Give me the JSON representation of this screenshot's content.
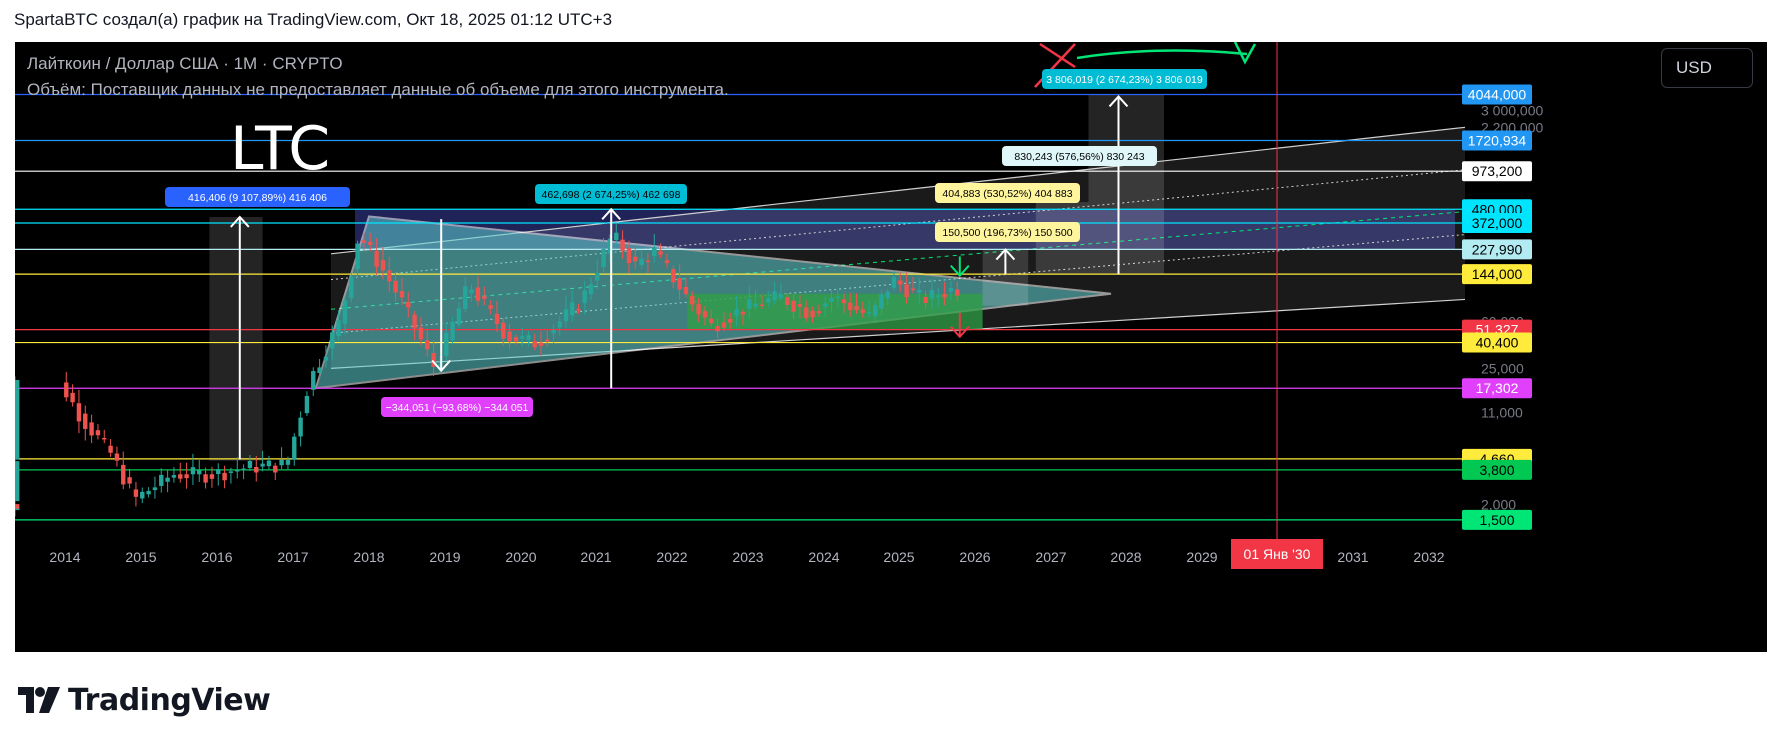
{
  "header": {
    "text": "SpartaBTC создал(а) график на TradingView.com, Окт 18, 2025 01:12 UTC+3"
  },
  "legend": {
    "symbol": "Лайткоин / Доллар США · 1M · CRYPTO",
    "volume": "Объём: Поставщик данных не предоставляет данные об объеме для этого инструмента."
  },
  "big_label": "LTC",
  "currency_button": "USD",
  "footer": {
    "brand": "TradingView"
  },
  "colors": {
    "background": "#000000",
    "candle_up": "#26a69a",
    "candle_down": "#ef5350",
    "triangle_fill": "#5fd3d3",
    "channel_fill": "#3b3f9e",
    "range_box": "#2ea043"
  },
  "chart_data": {
    "type": "candlestick",
    "title": "Лайткоин / Доллар США · 1M · CRYPTO",
    "x_axis": {
      "ticks": [
        "2014",
        "2015",
        "2016",
        "2017",
        "2018",
        "2019",
        "2020",
        "2021",
        "2022",
        "2023",
        "2024",
        "2025",
        "2026",
        "2027",
        "2028",
        "2029",
        "2031",
        "2032"
      ],
      "highlight": "01 Янв '30"
    },
    "y_axis": {
      "scale": "log",
      "faded_ticks": [
        "3 000,000",
        "2 200,000",
        "60,000",
        "25,000",
        "11,000",
        "2,000"
      ],
      "badges": [
        {
          "label": "4044,000",
          "price": 4044,
          "bg": "#2196f3",
          "fg": "#ffffff"
        },
        {
          "label": "1720,934",
          "price": 1720.934,
          "bg": "#2196f3",
          "fg": "#ffffff"
        },
        {
          "label": "973,200",
          "price": 973.2,
          "bg": "#ffffff",
          "fg": "#000000"
        },
        {
          "label": "480,000",
          "price": 480,
          "bg": "#00e5ff",
          "fg": "#000000"
        },
        {
          "label": "372,000",
          "price": 372,
          "bg": "#00e5ff",
          "fg": "#000000"
        },
        {
          "label": "227,990",
          "price": 227.99,
          "bg": "#b2ebf2",
          "fg": "#000000"
        },
        {
          "label": "144,000",
          "price": 144,
          "bg": "#ffeb3b",
          "fg": "#000000"
        },
        {
          "label": "51,327",
          "price": 51.327,
          "bg": "#f23645",
          "fg": "#ffffff"
        },
        {
          "label": "40,400",
          "price": 40.4,
          "bg": "#ffeb3b",
          "fg": "#000000"
        },
        {
          "label": "17,302",
          "price": 17.302,
          "bg": "#e040fb",
          "fg": "#ffffff"
        },
        {
          "label": "4,660",
          "price": 4.66,
          "bg": "#ffeb3b",
          "fg": "#000000"
        },
        {
          "label": "3,800",
          "price": 3.8,
          "bg": "#00c853",
          "fg": "#000000"
        },
        {
          "label": "1,500",
          "price": 1.5,
          "bg": "#00e676",
          "fg": "#000000"
        }
      ]
    },
    "annotations": [
      {
        "text": "416,406 (9 107,89%) 416 406",
        "bg": "#2962ff"
      },
      {
        "text": "462,698 (2 674,25%) 462 698",
        "bg": "#00bcd4"
      },
      {
        "text": "−344,051 (−93,68%) −344 051",
        "bg": "#e040fb"
      },
      {
        "text": "830,243 (576,56%) 830 243",
        "bg": "#e0f7fa"
      },
      {
        "text": "404,883 (530,52%) 404 883",
        "bg": "#fff59d"
      },
      {
        "text": "150,500 (196,73%) 150 500",
        "bg": "#fff59d"
      },
      {
        "text": "3 806,019 (2 674,23%) 3 806 019",
        "bg": "#00bcd4"
      }
    ]
  }
}
